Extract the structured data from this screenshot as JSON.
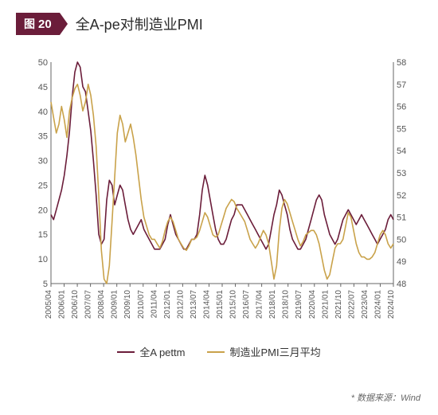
{
  "figure_label_prefix": "图",
  "figure_number": "20",
  "title": "全A-pe对制造业PMI",
  "source": "* 数据来源：Wind",
  "chart": {
    "type": "line-dual-axis",
    "background_color": "#ffffff",
    "grid_color": "#d9d9d9",
    "axis_color": "#666666",
    "axis_fontsize": 11,
    "xlabel_fontsize": 10,
    "y_left": {
      "min": 5,
      "max": 50,
      "step": 5
    },
    "y_right": {
      "min": 48,
      "max": 58,
      "step": 1
    },
    "x_labels": [
      "2005/04",
      "2006/01",
      "2006/10",
      "2007/07",
      "2008/04",
      "2009/01",
      "2009/10",
      "2010/07",
      "2011/04",
      "2012/01",
      "2012/10",
      "2013/07",
      "2014/04",
      "2015/01",
      "2015/10",
      "2016/07",
      "2017/04",
      "2018/01",
      "2018/10",
      "2019/07",
      "2020/04",
      "2021/01",
      "2021/10",
      "2022/07",
      "2023/04",
      "2024/01",
      "2024/10"
    ],
    "series": [
      {
        "name": "全A pettm",
        "axis": "left",
        "color": "#6b1d3a",
        "line_width": 1.6,
        "values": [
          19,
          18,
          20,
          22,
          24,
          27,
          31,
          36,
          43,
          48,
          50,
          49,
          45,
          44,
          40,
          36,
          30,
          23,
          15,
          13,
          14,
          22,
          26,
          25,
          21,
          23,
          25,
          24,
          21,
          18,
          16,
          15,
          16,
          17,
          18,
          16,
          15,
          14,
          13,
          12,
          12,
          12,
          13,
          14,
          17,
          19,
          17,
          15,
          14,
          13,
          12,
          12,
          13,
          14,
          14,
          15,
          19,
          24,
          27,
          25,
          22,
          19,
          16,
          14,
          13,
          13,
          14,
          16,
          18,
          19,
          21,
          21,
          21,
          20,
          19,
          18,
          17,
          16,
          15,
          14,
          13,
          12,
          13,
          16,
          19,
          21,
          24,
          23,
          21,
          19,
          16,
          14,
          13,
          12,
          12,
          13,
          14,
          16,
          18,
          20,
          22,
          23,
          22,
          19,
          17,
          15,
          14,
          13,
          14,
          16,
          18,
          19,
          20,
          19,
          18,
          17,
          18,
          19,
          18,
          17,
          16,
          15,
          14,
          13,
          14,
          15,
          16,
          18,
          19,
          18
        ]
      },
      {
        "name": "制造业PMI三月平均",
        "axis": "right",
        "color": "#c9a24a",
        "line_width": 1.6,
        "values": [
          56.2,
          55.5,
          54.8,
          55.2,
          56.0,
          55.4,
          54.6,
          55.8,
          56.4,
          56.8,
          57.0,
          56.5,
          55.8,
          56.2,
          57.0,
          56.5,
          55.6,
          54.2,
          52.0,
          49.5,
          48.2,
          48.0,
          48.8,
          50.8,
          52.8,
          54.8,
          55.6,
          55.2,
          54.4,
          54.8,
          55.2,
          54.6,
          53.8,
          52.8,
          51.8,
          51.0,
          50.6,
          50.2,
          50.0,
          50.0,
          49.8,
          49.6,
          49.9,
          50.4,
          50.8,
          51.0,
          50.8,
          50.4,
          50.0,
          49.8,
          49.6,
          49.5,
          49.7,
          50.0,
          50.0,
          50.1,
          50.4,
          50.8,
          51.2,
          51.0,
          50.6,
          50.2,
          50.1,
          50.2,
          50.6,
          51.0,
          51.4,
          51.6,
          51.8,
          51.7,
          51.4,
          51.2,
          51.0,
          50.8,
          50.4,
          50.0,
          49.8,
          49.6,
          49.8,
          50.1,
          50.4,
          50.2,
          49.8,
          49.0,
          48.2,
          48.8,
          50.4,
          51.4,
          51.8,
          51.6,
          51.2,
          50.8,
          50.4,
          50.0,
          49.7,
          49.9,
          50.2,
          50.3,
          50.4,
          50.4,
          50.2,
          49.8,
          49.2,
          48.6,
          48.2,
          48.4,
          49.0,
          49.6,
          49.8,
          49.8,
          50.0,
          50.6,
          51.2,
          51.0,
          50.4,
          49.8,
          49.4,
          49.2,
          49.2,
          49.1,
          49.1,
          49.2,
          49.4,
          49.8,
          50.2,
          50.4,
          50.2,
          49.8,
          49.6,
          49.8
        ]
      }
    ],
    "legend_position": "bottom-center"
  }
}
